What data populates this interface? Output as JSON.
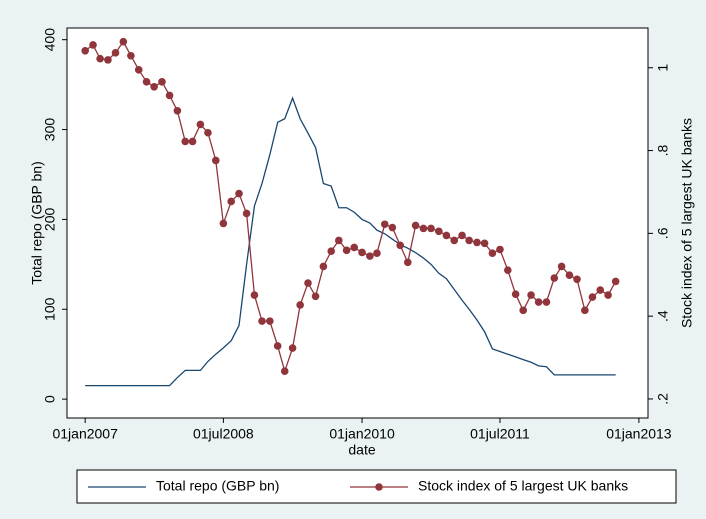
{
  "chart_data": {
    "type": "line",
    "xlabel": "date",
    "ylabel": "Total repo (GBP bn)",
    "y2label": "Stock index of 5 largest UK banks",
    "x": [
      "2007-01",
      "2007-02",
      "2007-03",
      "2007-04",
      "2007-05",
      "2007-06",
      "2007-07",
      "2007-08",
      "2007-09",
      "2007-10",
      "2007-11",
      "2007-12",
      "2008-01",
      "2008-02",
      "2008-03",
      "2008-04",
      "2008-05",
      "2008-06",
      "2008-07",
      "2008-08",
      "2008-09",
      "2008-10",
      "2008-11",
      "2008-12",
      "2009-01",
      "2009-02",
      "2009-03",
      "2009-04",
      "2009-05",
      "2009-06",
      "2009-07",
      "2009-08",
      "2009-09",
      "2009-10",
      "2009-11",
      "2009-12",
      "2010-01",
      "2010-02",
      "2010-03",
      "2010-04",
      "2010-05",
      "2010-06",
      "2010-07",
      "2010-08",
      "2010-09",
      "2010-10",
      "2010-11",
      "2010-12",
      "2011-01",
      "2011-02",
      "2011-03",
      "2011-04",
      "2011-05",
      "2011-06",
      "2011-07",
      "2011-08",
      "2011-09",
      "2011-10",
      "2011-11",
      "2011-12",
      "2012-01",
      "2012-02",
      "2012-03",
      "2012-04",
      "2012-05",
      "2012-06",
      "2012-07",
      "2012-08",
      "2012-09",
      "2012-10"
    ],
    "series": [
      {
        "name": "Total repo (GBP bn)",
        "color": "#1a476f",
        "axis": "y",
        "values": [
          15,
          15,
          15,
          15,
          15,
          15,
          15,
          15,
          15,
          15,
          15,
          15,
          24,
          32,
          32,
          32,
          42,
          50,
          57,
          65,
          82,
          150,
          215,
          240,
          272,
          308,
          312,
          335,
          312,
          296,
          280,
          240,
          237,
          213,
          213,
          208,
          200,
          196,
          188,
          184,
          178,
          172,
          168,
          163,
          157,
          150,
          140,
          134,
          122,
          110,
          100,
          88,
          75,
          56,
          53,
          50,
          47,
          44,
          41,
          37,
          36,
          27,
          27,
          27,
          27,
          27,
          27,
          27,
          27,
          27
        ]
      },
      {
        "name": "Stock index of 5 largest UK banks",
        "color": "#90353b",
        "axis": "y2",
        "marker": "circle",
        "values": [
          1.041,
          1.055,
          1.022,
          1.019,
          1.036,
          1.063,
          1.029,
          0.995,
          0.966,
          0.954,
          0.966,
          0.933,
          0.896,
          0.822,
          0.822,
          0.863,
          0.843,
          0.776,
          0.624,
          0.677,
          0.696,
          0.648,
          0.451,
          0.388,
          0.388,
          0.328,
          0.267,
          0.323,
          0.427,
          0.48,
          0.448,
          0.52,
          0.557,
          0.583,
          0.559,
          0.566,
          0.554,
          0.545,
          0.552,
          0.622,
          0.614,
          0.571,
          0.53,
          0.619,
          0.612,
          0.612,
          0.605,
          0.595,
          0.583,
          0.595,
          0.583,
          0.578,
          0.576,
          0.552,
          0.561,
          0.511,
          0.453,
          0.414,
          0.451,
          0.434,
          0.434,
          0.492,
          0.52,
          0.499,
          0.489,
          0.414,
          0.446,
          0.463,
          0.451,
          0.484
        ]
      }
    ],
    "xlim": [
      "2006-10-21",
      "2013-02-06"
    ],
    "xticks": [
      {
        "value": "2007-01-01",
        "label": "01jan2007"
      },
      {
        "value": "2008-07-01",
        "label": "01jul2008"
      },
      {
        "value": "2010-01-01",
        "label": "01jan2010"
      },
      {
        "value": "2011-07-01",
        "label": "01jul2011"
      },
      {
        "value": "2013-01-01",
        "label": "01jan2013"
      }
    ],
    "ylim": [
      -21,
      413
    ],
    "yticks": [
      0,
      100,
      200,
      300,
      400
    ],
    "y2lim": [
      0.154,
      1.096
    ],
    "y2ticks": [
      {
        "value": 0.2,
        "label": ".2"
      },
      {
        "value": 0.4,
        "label": ".4"
      },
      {
        "value": 0.6,
        "label": ".6"
      },
      {
        "value": 0.8,
        "label": ".8"
      },
      {
        "value": 1,
        "label": "1"
      }
    ],
    "grid": false,
    "legend": "bottom"
  }
}
